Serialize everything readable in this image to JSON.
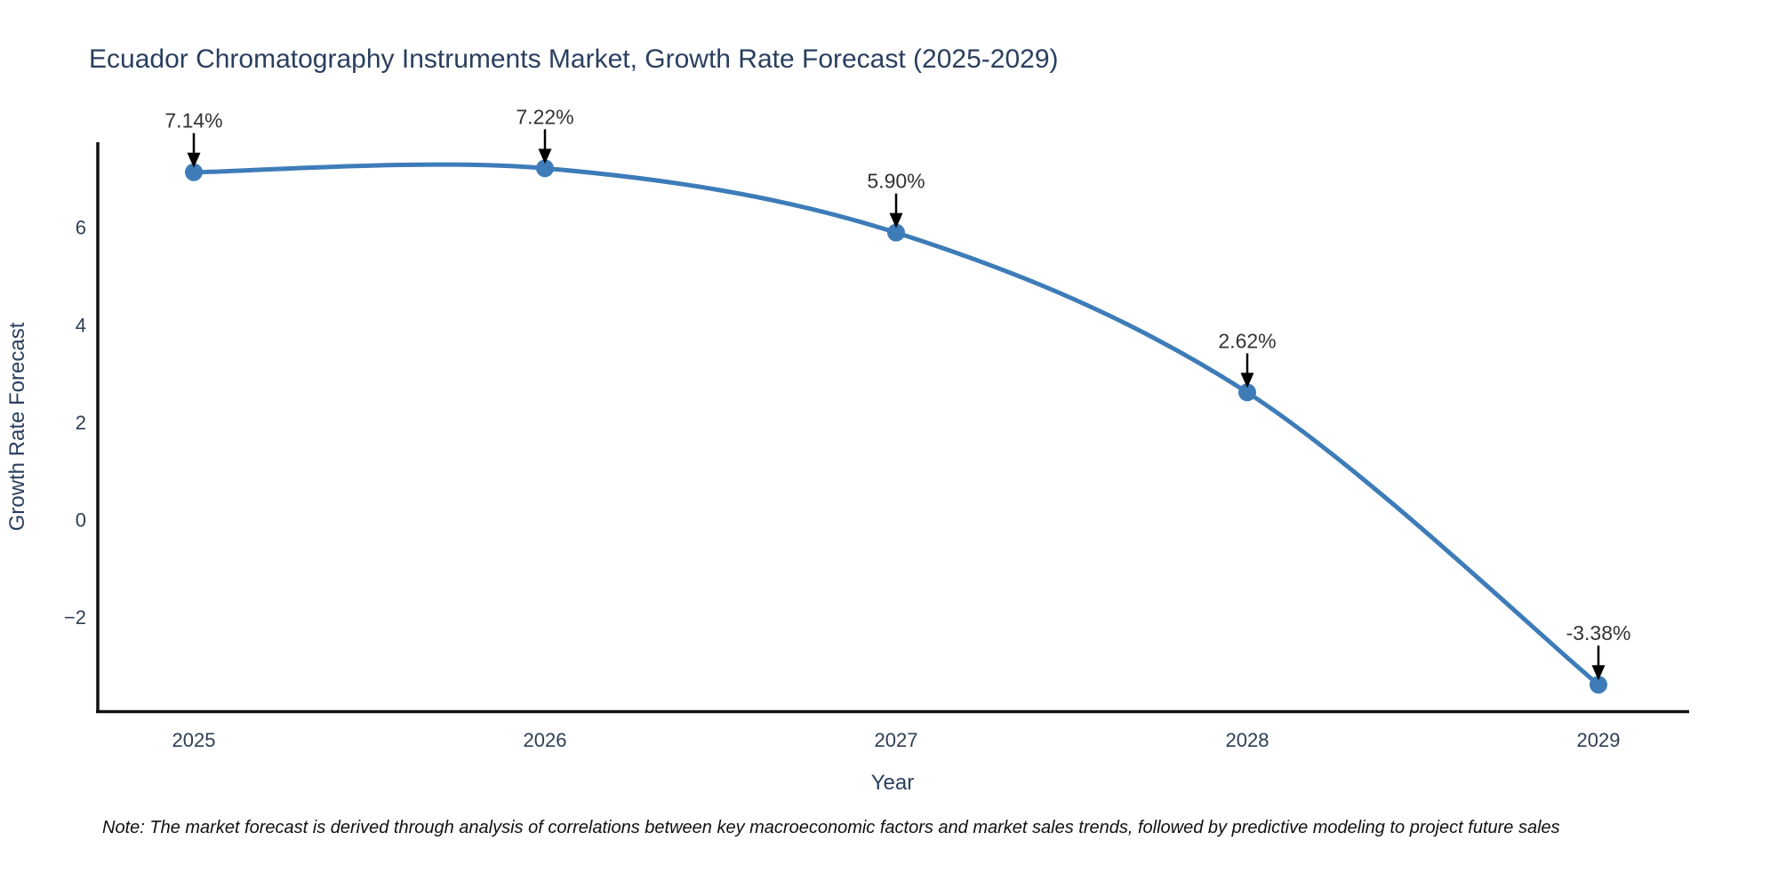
{
  "title": "Ecuador Chromatography Instruments Market, Growth Rate Forecast (2025-2029)",
  "note": "Note: The market forecast is derived through analysis of correlations between key macroeconomic factors and market sales trends, followed by predictive modeling to project future sales",
  "chart_data": {
    "type": "line",
    "title": "Ecuador Chromatography Instruments Market, Growth Rate Forecast (2025-2029)",
    "x": [
      2025,
      2026,
      2027,
      2028,
      2029
    ],
    "values": [
      7.14,
      7.22,
      5.9,
      2.62,
      -3.38
    ],
    "point_labels": [
      "7.14%",
      "7.22%",
      "5.90%",
      "2.62%",
      "-3.38%"
    ],
    "xlabel": "Year",
    "ylabel": "Growth Rate Forecast",
    "yticks": [
      6,
      4,
      2,
      0,
      -2
    ],
    "ylim": [
      -3.96,
      7.76
    ],
    "line_shape": "spline",
    "grid": false,
    "legend": "none",
    "colors": {
      "line": "#3d7cb8",
      "marker": "#3d7cb8",
      "axis": "#111111",
      "annotation_text": "#333333",
      "annotation_arrow": "#000000",
      "title_text": "#2a3f5f",
      "tick_text": "#2f3d53"
    }
  }
}
